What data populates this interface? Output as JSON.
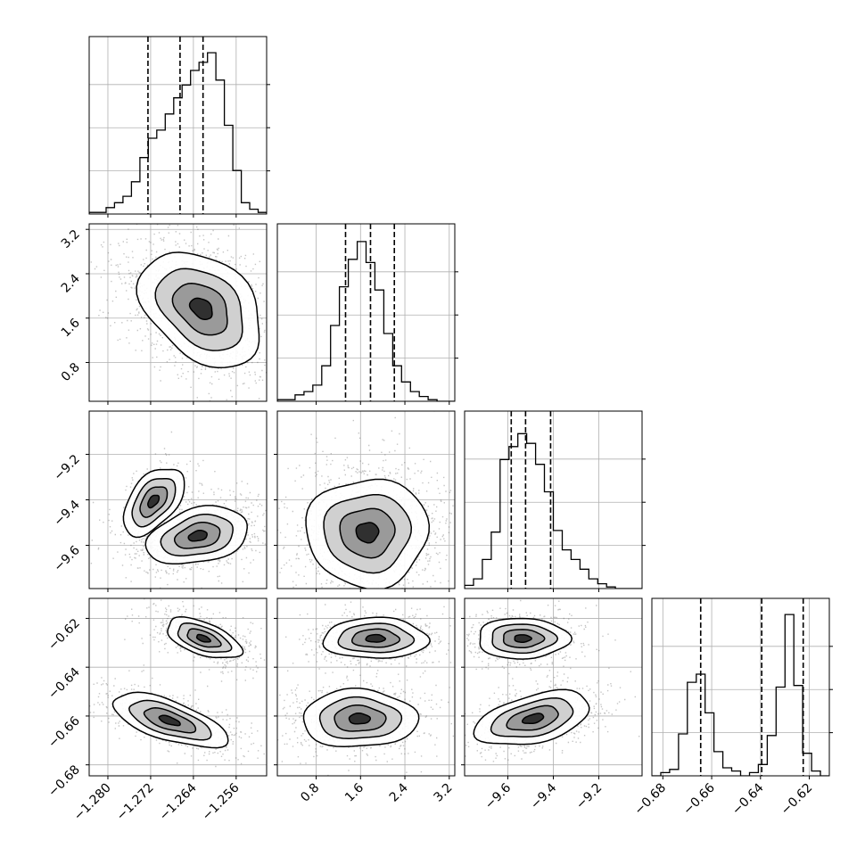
{
  "chart_data": {
    "type": "corner",
    "title": "",
    "parameters": [
      {
        "ticks": [
          -1.28,
          -1.272,
          -1.264,
          -1.256
        ],
        "tick_labels": [
          "−1.280",
          "−1.272",
          "−1.264",
          "−1.256"
        ],
        "range": [
          -1.2835,
          -1.2503
        ]
      },
      {
        "ticks": [
          0.8,
          1.6,
          2.4,
          3.2
        ],
        "tick_labels": [
          "0.8",
          "1.6",
          "2.4",
          "3.2"
        ],
        "range": [
          0.1,
          3.3
        ]
      },
      {
        "ticks": [
          -9.6,
          -9.4,
          -9.2
        ],
        "tick_labels": [
          "−9.6",
          "−9.4",
          "−9.2"
        ],
        "range": [
          -9.79,
          -9.01
        ]
      },
      {
        "ticks": [
          -0.68,
          -0.66,
          -0.64,
          -0.62
        ],
        "tick_labels": [
          "−0.68",
          "−0.66",
          "−0.64",
          "−0.62"
        ],
        "range": [
          -0.6845,
          -0.6118
        ]
      }
    ],
    "quantiles": [
      [
        -1.2725,
        -1.2665,
        -1.2622
      ],
      [
        1.33,
        1.78,
        2.21
      ],
      [
        -9.585,
        -9.522,
        -9.412
      ],
      [
        -0.6645,
        -0.6395,
        -0.6225
      ]
    ],
    "histograms": [
      {
        "counts": [
          0.01,
          0.01,
          0.04,
          0.07,
          0.11,
          0.2,
          0.35,
          0.47,
          0.52,
          0.62,
          0.72,
          0.8,
          0.89,
          0.94,
          1.0,
          0.83,
          0.55,
          0.27,
          0.07,
          0.03,
          0.01
        ]
      },
      {
        "counts": [
          0.01,
          0.01,
          0.04,
          0.06,
          0.1,
          0.22,
          0.47,
          0.71,
          0.88,
          0.99,
          0.86,
          0.69,
          0.42,
          0.22,
          0.12,
          0.06,
          0.03,
          0.01,
          0.0,
          0.0
        ]
      },
      {
        "counts": [
          0.02,
          0.06,
          0.18,
          0.35,
          0.8,
          0.88,
          0.96,
          0.9,
          0.77,
          0.6,
          0.36,
          0.24,
          0.18,
          0.12,
          0.06,
          0.03,
          0.01,
          0.0,
          0.0,
          0.0
        ]
      },
      {
        "counts": [
          0.0,
          0.02,
          0.04,
          0.26,
          0.58,
          0.63,
          0.39,
          0.15,
          0.05,
          0.03,
          0.0,
          0.02,
          0.07,
          0.25,
          0.55,
          1.0,
          0.56,
          0.14,
          0.03,
          0.0
        ]
      }
    ],
    "grid": true,
    "colors": {
      "line": "#000000",
      "grid": "#b0b0b0",
      "points": "#555555"
    }
  }
}
